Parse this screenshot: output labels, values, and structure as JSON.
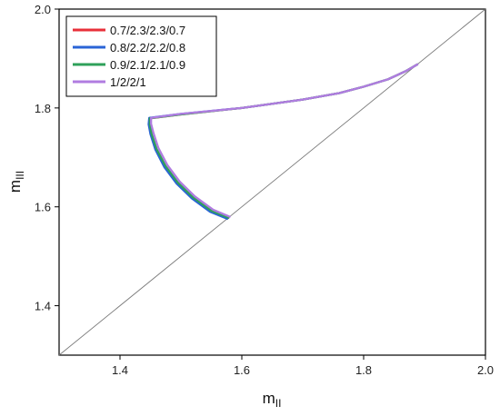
{
  "chart_data": {
    "type": "line",
    "xlabel": "m",
    "xlabel_sub": "II",
    "ylabel": "m",
    "ylabel_sub": "III",
    "xlim": [
      1.3,
      2.0
    ],
    "ylim": [
      1.3,
      2.0
    ],
    "x_ticks": [
      1.4,
      1.6,
      1.8,
      2.0
    ],
    "x_tick_labels": [
      "1.4",
      "1.6",
      "1.8",
      "2.0"
    ],
    "y_ticks": [
      1.4,
      1.6,
      1.8,
      2.0
    ],
    "y_tick_labels": [
      "1.4",
      "1.6",
      "1.8",
      "2.0"
    ],
    "grid": false,
    "legend_position": "top-left",
    "reference_line": {
      "x": [
        1.3,
        2.0
      ],
      "y": [
        1.3,
        2.0
      ],
      "color": "#7a7a7a"
    },
    "series": [
      {
        "name": "0.7/2.3/2.3/0.7",
        "color": "#e8303a",
        "x": [
          1.578,
          1.55,
          1.52,
          1.495,
          1.475,
          1.46,
          1.452,
          1.449,
          1.45,
          1.5,
          1.6,
          1.7,
          1.76,
          1.8,
          1.84,
          1.87,
          1.888
        ],
        "y": [
          1.578,
          1.592,
          1.618,
          1.648,
          1.68,
          1.715,
          1.745,
          1.765,
          1.779,
          1.787,
          1.8,
          1.817,
          1.83,
          1.843,
          1.858,
          1.875,
          1.888
        ]
      },
      {
        "name": "0.8/2.2/2.2/0.8",
        "color": "#2a64d6",
        "x": [
          1.576,
          1.548,
          1.518,
          1.493,
          1.473,
          1.458,
          1.45,
          1.447,
          1.448,
          1.5,
          1.6,
          1.7,
          1.76,
          1.8,
          1.84,
          1.87,
          1.888
        ],
        "y": [
          1.576,
          1.59,
          1.617,
          1.647,
          1.68,
          1.716,
          1.747,
          1.767,
          1.78,
          1.788,
          1.8,
          1.817,
          1.83,
          1.843,
          1.858,
          1.875,
          1.888
        ]
      },
      {
        "name": "0.9/2.1/2.1/0.9",
        "color": "#2fa05a",
        "x": [
          1.578,
          1.55,
          1.52,
          1.495,
          1.475,
          1.46,
          1.452,
          1.449,
          1.449,
          1.5,
          1.6,
          1.7,
          1.76,
          1.8,
          1.84,
          1.87,
          1.888
        ],
        "y": [
          1.578,
          1.592,
          1.619,
          1.649,
          1.682,
          1.717,
          1.747,
          1.766,
          1.779,
          1.787,
          1.8,
          1.817,
          1.83,
          1.843,
          1.858,
          1.875,
          1.888
        ]
      },
      {
        "name": "1/2/2/1",
        "color": "#b07ce0",
        "x": [
          1.58,
          1.553,
          1.523,
          1.498,
          1.478,
          1.463,
          1.455,
          1.451,
          1.451,
          1.5,
          1.6,
          1.7,
          1.76,
          1.8,
          1.84,
          1.87,
          1.888
        ],
        "y": [
          1.58,
          1.594,
          1.621,
          1.651,
          1.684,
          1.719,
          1.749,
          1.768,
          1.78,
          1.788,
          1.8,
          1.817,
          1.83,
          1.843,
          1.858,
          1.875,
          1.888
        ]
      }
    ]
  }
}
